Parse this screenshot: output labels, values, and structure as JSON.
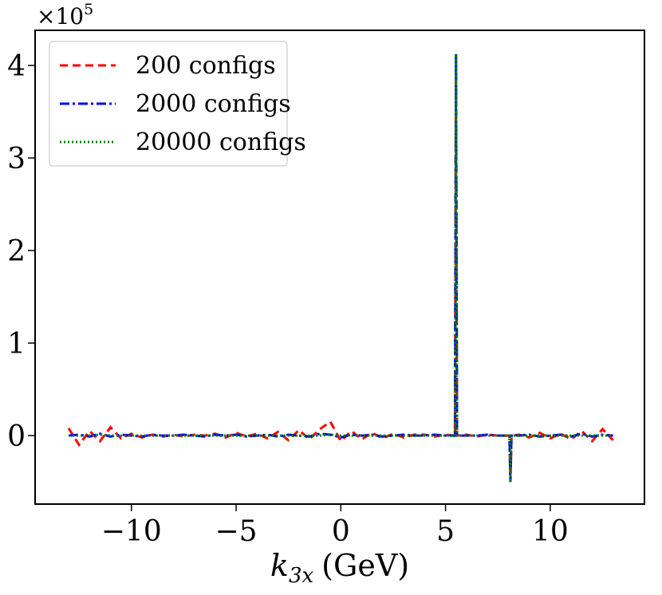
{
  "chart_data": {
    "type": "line",
    "y_multiplier": {
      "base": "×10",
      "exponent": 5
    },
    "xlabel": {
      "symbol": "k",
      "subscript": "3x",
      "unit": "(GeV)"
    },
    "xlim": [
      -14.6,
      14.5
    ],
    "ylim": [
      -0.74,
      4.38
    ],
    "xticks": [
      {
        "value": -10,
        "label": "−10"
      },
      {
        "value": -5,
        "label": "−5"
      },
      0,
      5,
      10
    ],
    "yticks": [
      0,
      1,
      2,
      3,
      4
    ],
    "legend": "upper left",
    "x": [
      -13,
      -12.5,
      -12,
      -11.5,
      -11,
      -10.5,
      -10,
      -9.5,
      -9,
      -8.5,
      -8,
      -7.5,
      -7,
      -6.5,
      -6,
      -5.5,
      -5,
      -4.5,
      -4,
      -3.5,
      -3,
      -2.5,
      -2,
      -1.5,
      -1,
      -0.5,
      0,
      0.5,
      1,
      1.5,
      2,
      2.5,
      3,
      3.5,
      4,
      4.5,
      5,
      5.45,
      5.5,
      5.55,
      6,
      6.5,
      7,
      7.5,
      8.05,
      8.1,
      8.15,
      8.5,
      9,
      9.5,
      10,
      10.5,
      11,
      11.5,
      12,
      12.5,
      13
    ],
    "series": [
      {
        "name": "200 configs",
        "color": "#ff0000",
        "linestyle": "dashed",
        "values": [
          0.08,
          -0.1,
          0.05,
          -0.06,
          0.09,
          -0.03,
          0.02,
          -0.02,
          0.01,
          -0.01,
          0.01,
          -0.01,
          0.01,
          0,
          0.02,
          -0.02,
          0.03,
          -0.01,
          0.02,
          -0.03,
          0.04,
          -0.05,
          0.06,
          -0.04,
          0.07,
          0.15,
          -0.06,
          0.05,
          -0.04,
          0.03,
          -0.03,
          0.02,
          -0.02,
          0.01,
          0.01,
          -0.01,
          0.01,
          0,
          4.12,
          0,
          0.01,
          -0.01,
          0.01,
          0,
          0,
          -0.5,
          0,
          0.01,
          -0.02,
          0.03,
          -0.03,
          0.02,
          -0.04,
          0.05,
          -0.06,
          0.07,
          -0.05
        ]
      },
      {
        "name": "2000 configs",
        "color": "#0000ff",
        "linestyle": "dashdot",
        "values": [
          0,
          0.01,
          -0.01,
          0.02,
          -0.01,
          0.01,
          0,
          -0.01,
          0.01,
          0,
          0,
          0.01,
          0,
          -0.01,
          0.01,
          0,
          0.01,
          -0.01,
          0,
          0.01,
          -0.01,
          0.01,
          0,
          -0.01,
          0.02,
          0.01,
          -0.02,
          0.01,
          0,
          0.01,
          -0.01,
          0,
          0.01,
          0,
          0,
          0.01,
          0,
          0,
          4.12,
          0,
          0,
          0,
          0.01,
          0,
          0,
          -0.5,
          0,
          0,
          0.01,
          -0.01,
          0,
          0.01,
          -0.01,
          0.02,
          -0.01,
          0.01,
          0
        ]
      },
      {
        "name": "20000 configs",
        "color": "#008000",
        "linestyle": "dotted",
        "values": [
          0,
          0,
          0,
          0.01,
          0,
          0,
          0,
          0,
          0,
          0,
          0,
          0,
          0,
          0,
          0,
          0,
          0,
          0,
          0,
          0,
          0,
          0,
          0,
          0,
          0,
          0.01,
          0,
          0,
          0,
          0,
          0,
          0,
          0,
          0,
          0,
          0,
          0,
          0,
          4.12,
          0,
          0,
          0,
          0,
          0,
          0,
          -0.5,
          0,
          0,
          0,
          0,
          0,
          0,
          0,
          0,
          0,
          0,
          0
        ]
      }
    ]
  }
}
